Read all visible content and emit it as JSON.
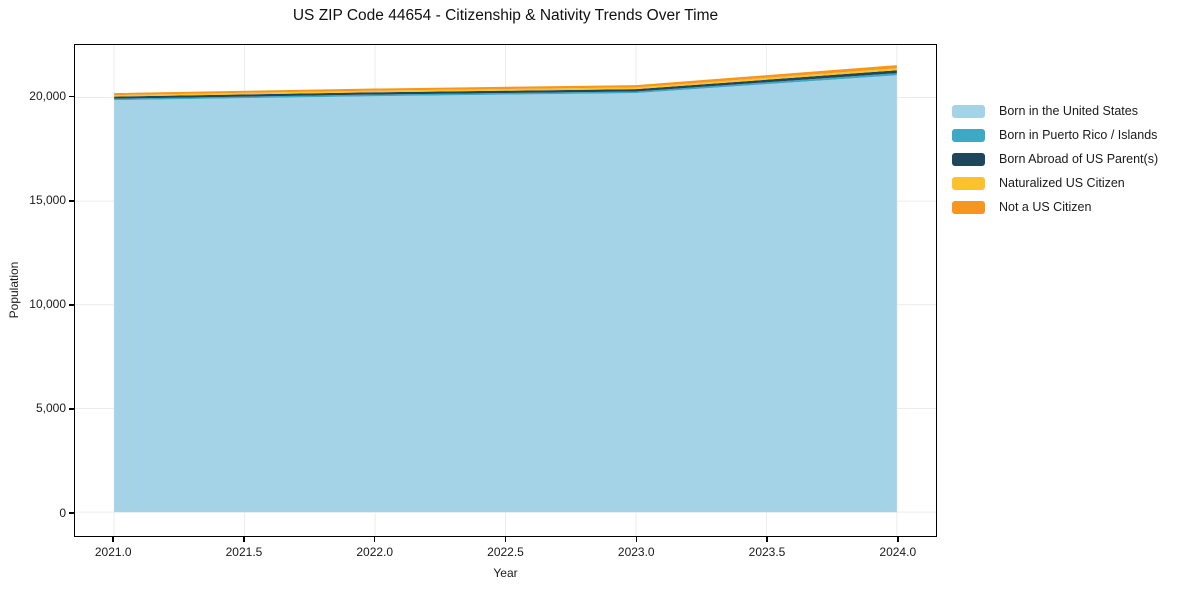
{
  "chart_data": {
    "type": "area",
    "stacked": true,
    "title": "US ZIP Code 44654 - Citizenship & Nativity Trends Over Time",
    "xlabel": "Year",
    "ylabel": "Population",
    "x": [
      2021,
      2022,
      2023,
      2024
    ],
    "series": [
      {
        "name": "Born in the United States",
        "color": "#a4d2e6",
        "values": [
          19870,
          20060,
          20210,
          21070
        ]
      },
      {
        "name": "Born in Puerto Rico / Islands",
        "color": "#3fa8c4",
        "values": [
          70,
          80,
          80,
          100
        ]
      },
      {
        "name": "Born Abroad of US Parent(s)",
        "color": "#1f475c",
        "values": [
          100,
          110,
          110,
          140
        ]
      },
      {
        "name": "Naturalized US Citizen",
        "color": "#fbc22c",
        "values": [
          75,
          80,
          85,
          100
        ]
      },
      {
        "name": "Not a US Citizen",
        "color": "#f7961f",
        "values": [
          95,
          100,
          110,
          150
        ]
      }
    ],
    "xlim": [
      2020.85,
      2024.15
    ],
    "ylim": [
      -1150,
      22530
    ],
    "x_ticks": [
      {
        "value": 2021.0,
        "label": "2021.0"
      },
      {
        "value": 2021.5,
        "label": "2021.5"
      },
      {
        "value": 2022.0,
        "label": "2022.0"
      },
      {
        "value": 2022.5,
        "label": "2022.5"
      },
      {
        "value": 2023.0,
        "label": "2023.0"
      },
      {
        "value": 2023.5,
        "label": "2023.5"
      },
      {
        "value": 2024.0,
        "label": "2024.0"
      }
    ],
    "y_ticks": [
      {
        "value": 0,
        "label": "0"
      },
      {
        "value": 5000,
        "label": "5,000"
      },
      {
        "value": 10000,
        "label": "10,000"
      },
      {
        "value": 15000,
        "label": "15,000"
      },
      {
        "value": 20000,
        "label": "20,000"
      }
    ],
    "grid": true,
    "grid_color": "#ececec",
    "legend_position": "right"
  }
}
